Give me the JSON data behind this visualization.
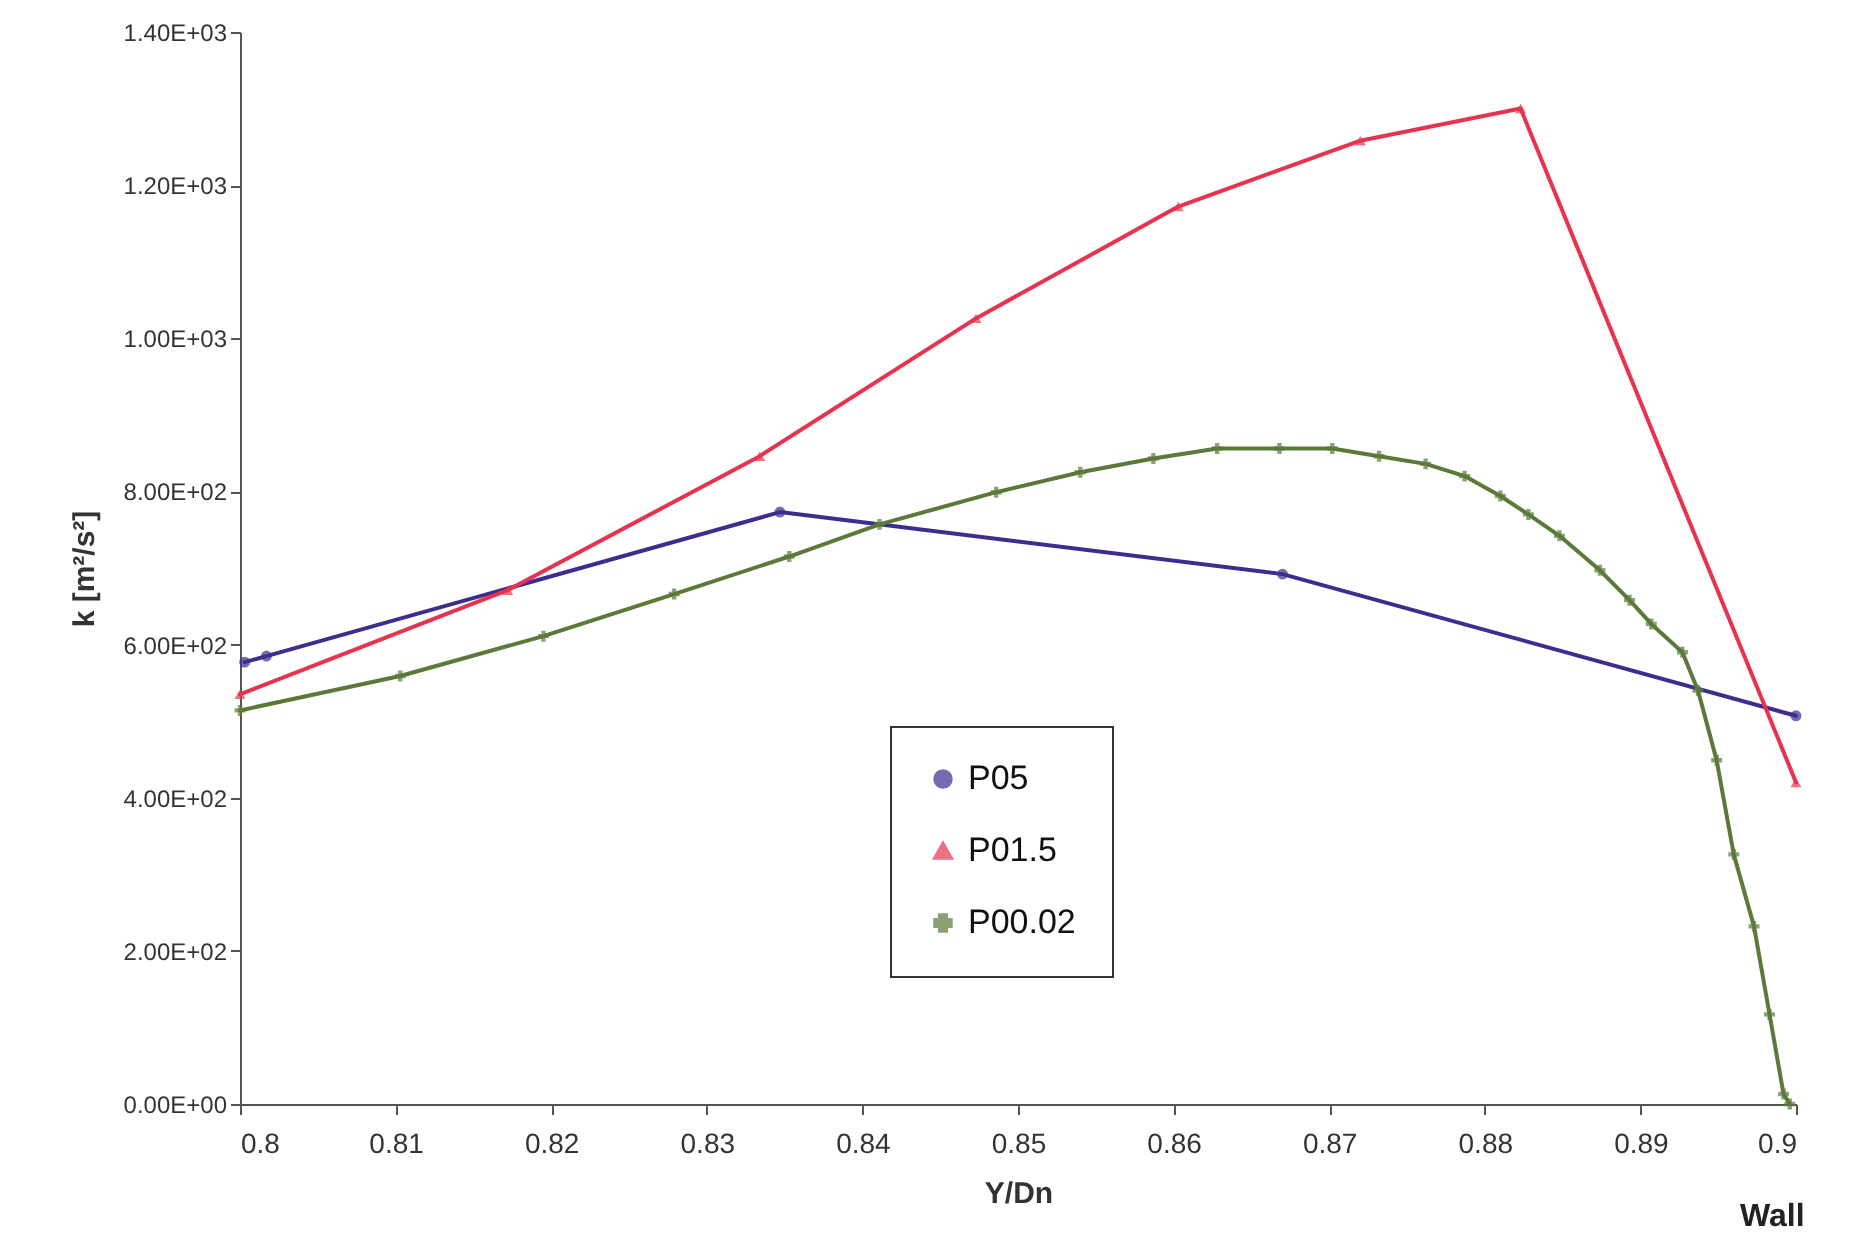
{
  "chart_data": {
    "type": "line",
    "xlabel": "Y/Dn",
    "ylabel": "k [m²/s²]",
    "annotations": [
      "Wall"
    ],
    "xlim": [
      0.8,
      0.9
    ],
    "xticks": [
      0.8,
      0.81,
      0.82,
      0.83,
      0.84,
      0.85,
      0.86,
      0.87,
      0.88,
      0.89,
      0.9
    ],
    "ylim": [
      0,
      1400
    ],
    "yticks": [
      {
        "value": 0,
        "label": "0.00E+00"
      },
      {
        "value": 200,
        "label": "2.00E+02"
      },
      {
        "value": 400,
        "label": "4.00E+02"
      },
      {
        "value": 600,
        "label": "6.00E+02"
      },
      {
        "value": 800,
        "label": "8.00E+02"
      },
      {
        "value": 1000,
        "label": "1.00E+03"
      },
      {
        "value": 1200,
        "label": "1.20E+03"
      },
      {
        "value": 1400,
        "label": "1.40E+03"
      }
    ],
    "grid": false,
    "legend": "bottom",
    "series": [
      {
        "name": "P05",
        "color": "#3a2f8f",
        "marker": "circle",
        "x": [
          0.8003,
          0.8017,
          0.8347,
          0.867,
          0.9
        ],
        "values": [
          577,
          585,
          773,
          692,
          507
        ]
      },
      {
        "name": "P01.5",
        "color": "#e8334f",
        "marker": "triangle",
        "x": [
          0.8,
          0.8172,
          0.8334,
          0.8473,
          0.8603,
          0.872,
          0.8823,
          0.9
        ],
        "values": [
          535,
          671,
          846,
          1026,
          1172,
          1258,
          1300,
          420
        ]
      },
      {
        "name": "P00.02",
        "color": "#5b7a3a",
        "marker": "cross",
        "x": [
          0.8,
          0.8103,
          0.8195,
          0.8279,
          0.8353,
          0.8411,
          0.8486,
          0.854,
          0.8587,
          0.8628,
          0.8668,
          0.8702,
          0.8732,
          0.8762,
          0.8787,
          0.881,
          0.8828,
          0.8848,
          0.8874,
          0.8893,
          0.8907,
          0.8927,
          0.8937,
          0.8949,
          0.896,
          0.8973,
          0.8983,
          0.8992,
          0.8996
        ],
        "values": [
          514,
          559,
          611,
          666,
          715,
          757,
          799,
          825,
          843,
          856,
          856,
          856,
          846,
          836,
          820,
          794,
          770,
          742,
          697,
          658,
          627,
          590,
          540,
          449,
          326,
          232,
          117,
          13,
          0
        ]
      }
    ]
  }
}
